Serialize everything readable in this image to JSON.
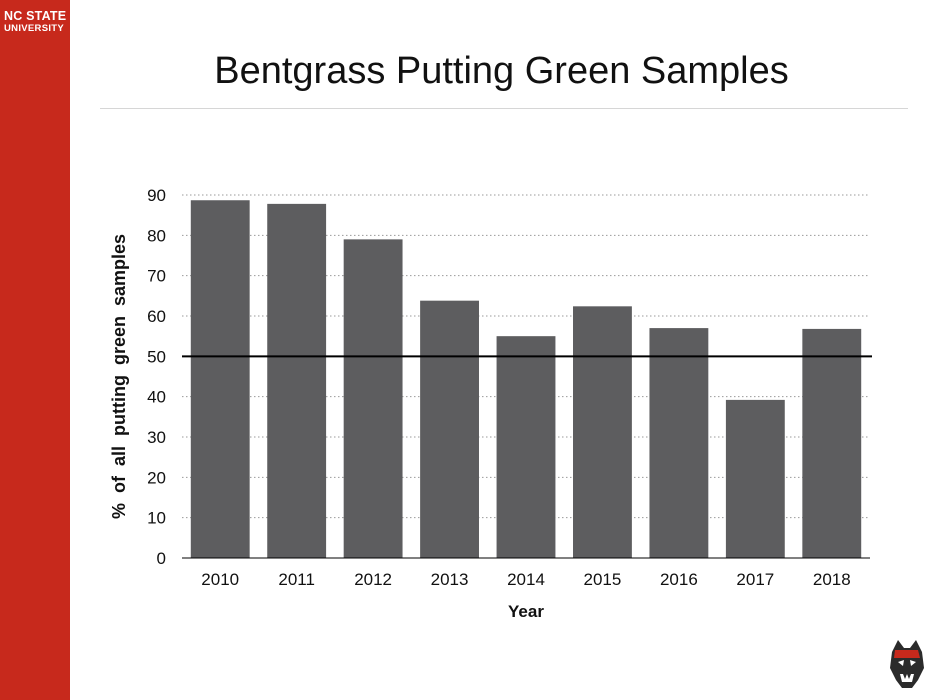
{
  "brand": {
    "line1": "NC STATE",
    "line2": "UNIVERSITY"
  },
  "colors": {
    "sidebar": "#c7291c",
    "bar": "#5d5d5f",
    "reference_line": "#000000"
  },
  "icons": {
    "mascot": "wolf-mascot-icon"
  },
  "chart_data": {
    "type": "bar",
    "title": "Bentgrass Putting Green Samples",
    "xlabel": "Year",
    "ylabel": "% of all putting green samples",
    "categories": [
      "2010",
      "2011",
      "2012",
      "2013",
      "2014",
      "2015",
      "2016",
      "2017",
      "2018"
    ],
    "values": [
      88.7,
      87.8,
      79,
      63.8,
      55,
      62.4,
      57,
      39.2,
      56.8
    ],
    "ylim": [
      0,
      90
    ],
    "yticks": [
      0,
      10,
      20,
      30,
      40,
      50,
      60,
      70,
      80,
      90
    ],
    "reference_line": 50,
    "grid": "horizontal-dotted",
    "legend": "none"
  }
}
